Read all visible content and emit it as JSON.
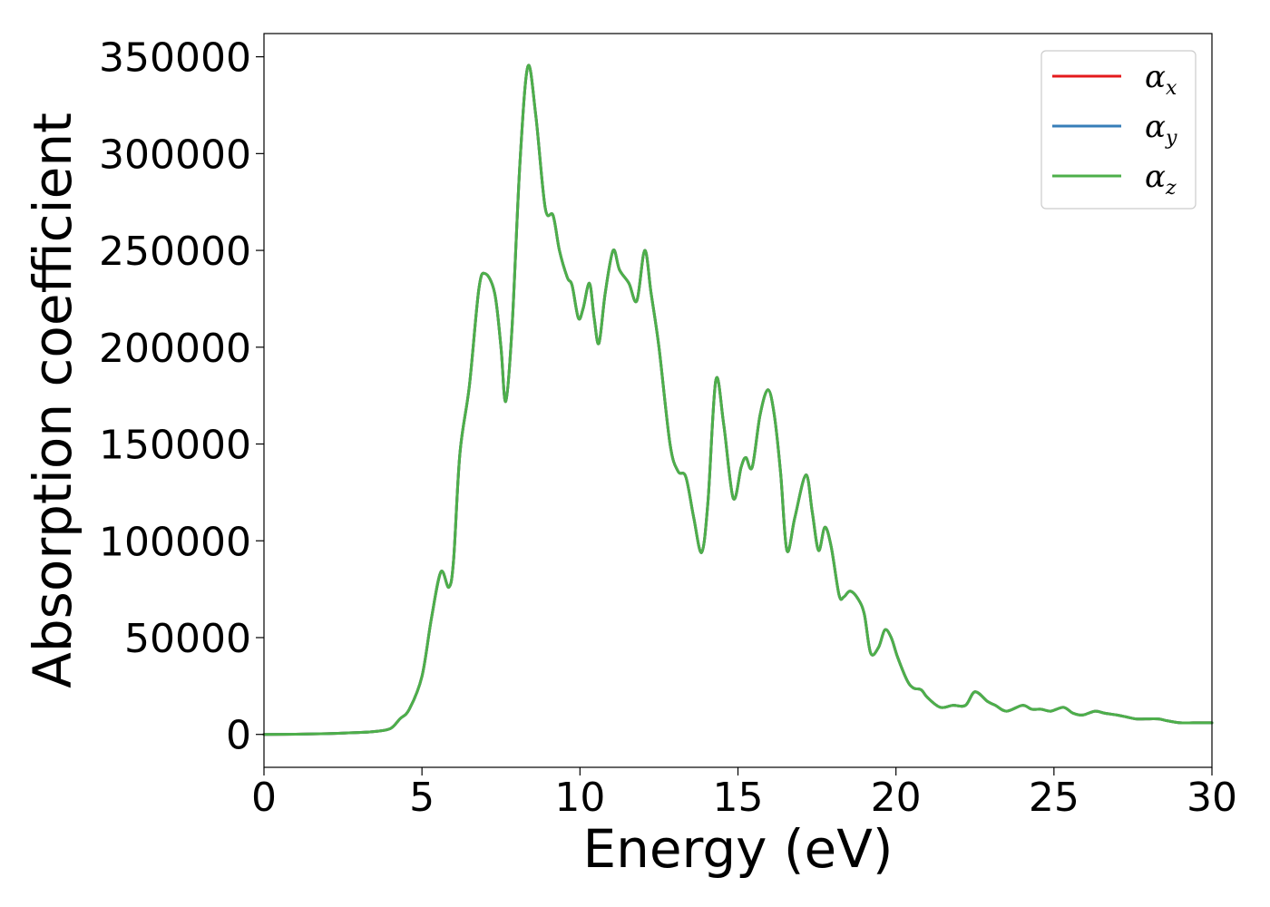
{
  "chart_data": {
    "type": "line",
    "title": "",
    "xlabel": "Energy (eV)",
    "ylabel": "Absorption coefficient",
    "xlim": [
      0,
      30
    ],
    "ylim": [
      -17000,
      362000
    ],
    "x_ticks": [
      0,
      5,
      10,
      15,
      20,
      25,
      30
    ],
    "y_ticks": [
      0,
      50000,
      100000,
      150000,
      200000,
      250000,
      300000,
      350000
    ],
    "x_tick_labels": [
      "0",
      "5",
      "10",
      "15",
      "20",
      "25",
      "30"
    ],
    "y_tick_labels": [
      "0",
      "50000",
      "100000",
      "150000",
      "200000",
      "250000",
      "300000",
      "350000"
    ],
    "grid": false,
    "legend_position": "top-right",
    "shared_x": [
      0,
      1,
      2,
      3,
      3.5,
      4,
      4.3,
      4.6,
      5.0,
      5.3,
      5.6,
      5.85,
      6.0,
      6.2,
      6.5,
      6.8,
      7.0,
      7.3,
      7.5,
      7.65,
      7.85,
      8.1,
      8.35,
      8.6,
      8.9,
      9.15,
      9.35,
      9.6,
      9.75,
      9.95,
      10.1,
      10.3,
      10.45,
      10.6,
      10.8,
      11.05,
      11.25,
      11.55,
      11.8,
      12.05,
      12.25,
      12.5,
      12.85,
      13.1,
      13.35,
      13.6,
      13.85,
      14.05,
      14.3,
      14.55,
      14.85,
      15.1,
      15.25,
      15.45,
      15.7,
      15.95,
      16.15,
      16.35,
      16.55,
      16.8,
      17.15,
      17.35,
      17.55,
      17.75,
      17.95,
      18.2,
      18.35,
      18.55,
      18.8,
      19.0,
      19.2,
      19.45,
      19.65,
      19.85,
      20.05,
      20.35,
      20.55,
      20.8,
      21.0,
      21.4,
      21.8,
      22.2,
      22.5,
      22.9,
      23.15,
      23.5,
      24.0,
      24.3,
      24.6,
      24.9,
      25.3,
      25.6,
      25.9,
      26.3,
      26.6,
      27.0,
      27.3,
      27.6,
      27.9,
      28.3,
      28.6,
      29.0,
      29.4,
      29.7,
      30.0
    ],
    "series": [
      {
        "name": "α_x",
        "name_base": "α",
        "name_sub": "x",
        "color": "#e41a1c",
        "values": [
          0,
          100,
          400,
          1000,
          1500,
          3000,
          8000,
          13000,
          30000,
          60000,
          84000,
          76000,
          90000,
          145000,
          180000,
          230000,
          238000,
          228000,
          200000,
          172000,
          210000,
          295000,
          345000,
          320000,
          272000,
          268000,
          250000,
          236000,
          232000,
          215000,
          220000,
          233000,
          215000,
          202000,
          228000,
          250000,
          240000,
          233000,
          224000,
          250000,
          228000,
          200000,
          150000,
          136000,
          133000,
          112000,
          94000,
          120000,
          183000,
          160000,
          122000,
          138000,
          143000,
          138000,
          165000,
          178000,
          165000,
          135000,
          95000,
          112000,
          134000,
          115000,
          95000,
          107000,
          97000,
          72000,
          71000,
          74000,
          70000,
          62000,
          42000,
          45000,
          54000,
          50000,
          40000,
          28000,
          24000,
          23000,
          19000,
          14000,
          15000,
          15000,
          22000,
          17000,
          15000,
          12000,
          15000,
          13000,
          13000,
          12000,
          14000,
          11000,
          10000,
          12000,
          11000,
          10000,
          9000,
          8000,
          8000,
          8000,
          7000,
          6000,
          6000,
          6000,
          6000
        ]
      },
      {
        "name": "α_y",
        "name_base": "α",
        "name_sub": "y",
        "color": "#377eb8",
        "values": [
          0,
          100,
          400,
          1000,
          1500,
          3000,
          8000,
          13000,
          30000,
          60000,
          84000,
          76000,
          90000,
          145000,
          180000,
          230000,
          238000,
          228000,
          200000,
          172000,
          210000,
          295000,
          345000,
          320000,
          272000,
          268000,
          250000,
          236000,
          232000,
          215000,
          220000,
          233000,
          215000,
          202000,
          228000,
          250000,
          240000,
          233000,
          224000,
          250000,
          228000,
          200000,
          150000,
          136000,
          133000,
          112000,
          94000,
          120000,
          183000,
          160000,
          122000,
          138000,
          143000,
          138000,
          165000,
          178000,
          165000,
          135000,
          95000,
          112000,
          134000,
          115000,
          95000,
          107000,
          97000,
          72000,
          71000,
          74000,
          70000,
          62000,
          42000,
          45000,
          54000,
          50000,
          40000,
          28000,
          24000,
          23000,
          19000,
          14000,
          15000,
          15000,
          22000,
          17000,
          15000,
          12000,
          15000,
          13000,
          13000,
          12000,
          14000,
          11000,
          10000,
          12000,
          11000,
          10000,
          9000,
          8000,
          8000,
          8000,
          7000,
          6000,
          6000,
          6000,
          6000
        ]
      },
      {
        "name": "α_z",
        "name_base": "α",
        "name_sub": "z",
        "color": "#4daf4a",
        "values": [
          0,
          100,
          400,
          1000,
          1500,
          3000,
          8000,
          13000,
          30000,
          60000,
          84000,
          76000,
          90000,
          145000,
          180000,
          230000,
          238000,
          228000,
          200000,
          172000,
          210000,
          295000,
          345000,
          320000,
          272000,
          268000,
          250000,
          236000,
          232000,
          215000,
          220000,
          233000,
          215000,
          202000,
          228000,
          250000,
          240000,
          233000,
          224000,
          250000,
          228000,
          200000,
          150000,
          136000,
          133000,
          112000,
          94000,
          120000,
          183000,
          160000,
          122000,
          138000,
          143000,
          138000,
          165000,
          178000,
          165000,
          135000,
          95000,
          112000,
          134000,
          115000,
          95000,
          107000,
          97000,
          72000,
          71000,
          74000,
          70000,
          62000,
          42000,
          45000,
          54000,
          50000,
          40000,
          28000,
          24000,
          23000,
          19000,
          14000,
          15000,
          15000,
          22000,
          17000,
          15000,
          12000,
          15000,
          13000,
          13000,
          12000,
          14000,
          11000,
          10000,
          12000,
          11000,
          10000,
          9000,
          8000,
          8000,
          8000,
          7000,
          6000,
          6000,
          6000,
          6000
        ]
      }
    ]
  }
}
